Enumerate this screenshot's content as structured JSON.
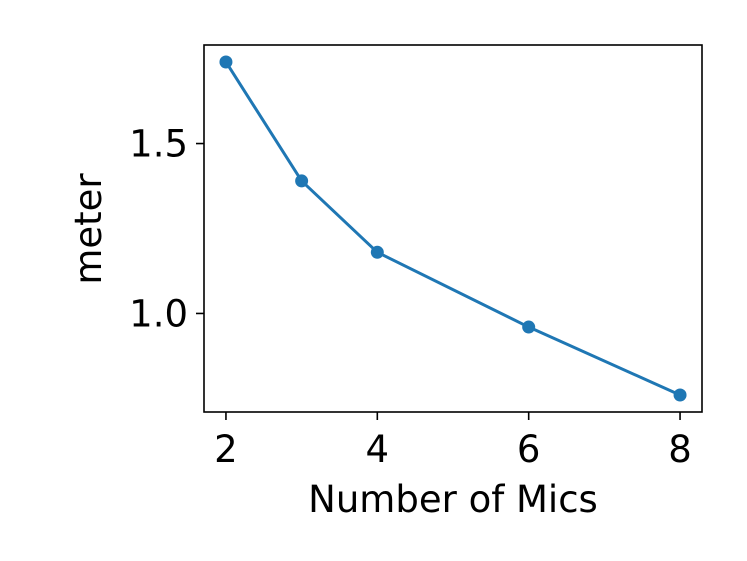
{
  "chart_data": {
    "type": "line",
    "xlabel": "Number of Mics",
    "ylabel": "meter",
    "x": [
      2,
      3,
      4,
      6,
      8
    ],
    "series": [
      {
        "values": [
          1.74,
          1.39,
          1.18,
          0.96,
          0.76
        ],
        "color": "#1f77b4",
        "marker": "circle"
      }
    ],
    "xticks": [
      2,
      4,
      6,
      8
    ],
    "xtick_labels": [
      "2",
      "4",
      "6",
      "8"
    ],
    "yticks": [
      1.0,
      1.5
    ],
    "ytick_labels": [
      "1.0",
      "1.5"
    ],
    "xlim": [
      1.71,
      8.29
    ],
    "ylim": [
      0.71,
      1.79
    ],
    "grid": false,
    "legend": false
  }
}
